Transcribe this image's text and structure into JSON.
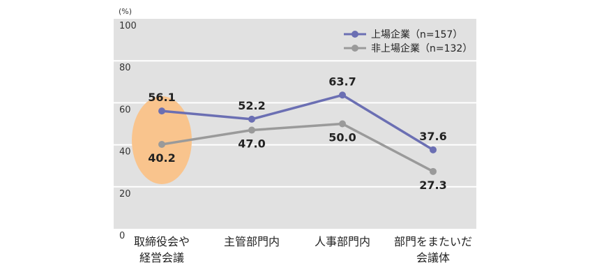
{
  "chart_data": {
    "type": "line",
    "unit_label": "(%)",
    "ylim": [
      0,
      100
    ],
    "yticks": [
      "0",
      "20",
      "40",
      "60",
      "80",
      "100"
    ],
    "categories": [
      [
        "取締役会や",
        "経営会議"
      ],
      [
        "主管部門内"
      ],
      [
        "人事部門内"
      ],
      [
        "部門をまたいだ",
        "会議体"
      ]
    ],
    "series": [
      {
        "name": "上場企業（n=157）",
        "values": [
          56.1,
          52.2,
          63.7,
          37.6
        ],
        "labels": [
          "56.1",
          "52.2",
          "63.7",
          "37.6"
        ],
        "color": "#6b6fb3"
      },
      {
        "name": "非上場企業（n=132）",
        "values": [
          40.2,
          47.0,
          50.0,
          27.3
        ],
        "labels": [
          "40.2",
          "47.0",
          "50.0",
          "27.3"
        ],
        "color": "#9a9a9a"
      }
    ],
    "grid": true,
    "legend_position": "top-right",
    "highlight": {
      "category_index": 0,
      "color": "#f9c48d"
    },
    "plot_background": "#e1e1e1"
  }
}
